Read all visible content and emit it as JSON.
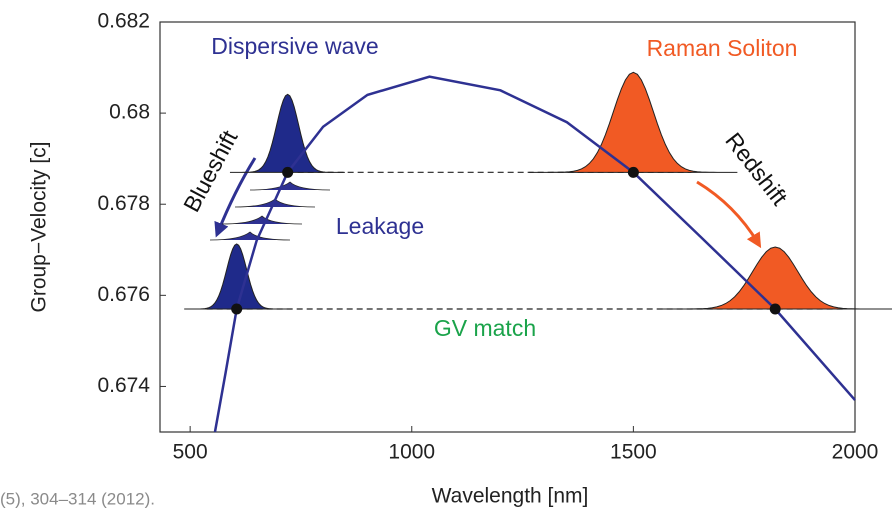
{
  "chart_data": {
    "type": "line",
    "x_label": "Wavelength [nm]",
    "y_label": "Group−Velocity [c]",
    "x": [
      556,
      580,
      605,
      650,
      720,
      800,
      900,
      1040,
      1200,
      1350,
      1500,
      1650,
      1820,
      2000
    ],
    "series": [
      {
        "color": "#2e3192",
        "values": [
          0.673,
          0.6743,
          0.6757,
          0.6772,
          0.6787,
          0.6797,
          0.6804,
          0.6808,
          0.6805,
          0.6798,
          0.6787,
          0.6773,
          0.6757,
          0.6737
        ]
      }
    ],
    "points": {
      "x": [
        720,
        1500,
        605,
        1820
      ],
      "y": [
        0.6787,
        0.6787,
        0.6757,
        0.6757
      ],
      "colors": [
        "#1f2a8a",
        "#f15a24",
        "#1f2a8a",
        "#f15a24"
      ]
    },
    "xlim": [
      432,
      2000
    ],
    "ylim": [
      0.673,
      0.682
    ],
    "xticks": [
      500,
      1000,
      1500,
      2000
    ],
    "yticks": [
      0.674,
      0.676,
      0.678,
      0.68,
      0.682
    ],
    "annotations": [
      {
        "text": "Dispersive wave",
        "color": "#2e3192"
      },
      {
        "text": "Raman Soliton",
        "color": "#f15a24"
      },
      {
        "text": "Blueshift",
        "color": "#111111"
      },
      {
        "text": "Redshift",
        "color": "#111111"
      },
      {
        "text": "Leakage",
        "color": "#2e3192"
      },
      {
        "text": "GV match",
        "color": "#1aa34a"
      }
    ],
    "caption": "(5), 304–314 (2012)."
  }
}
